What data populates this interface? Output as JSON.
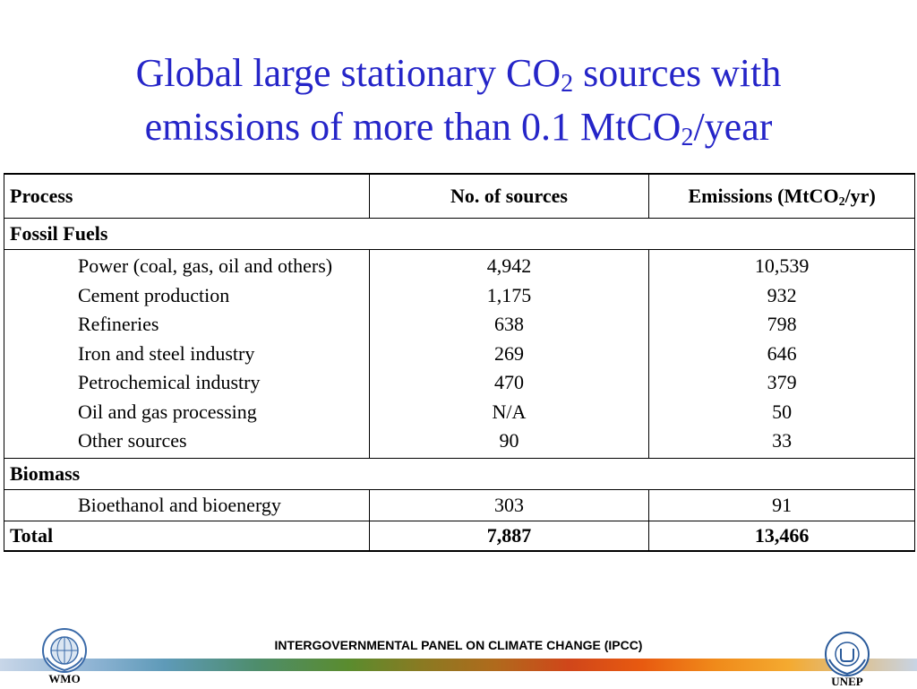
{
  "title": {
    "line1_before": "Global large stationary CO",
    "line1_sub": "2",
    "line1_after": " sources with",
    "line2_before": "emissions of more than 0.1 MtCO",
    "line2_sub": "2",
    "line2_after": "/year"
  },
  "table": {
    "headers": {
      "process": "Process",
      "sources": "No. of sources",
      "emissions_before": "Emissions (MtCO",
      "emissions_sub": "2",
      "emissions_after": "/yr)"
    },
    "fossil_fuels": {
      "label": "Fossil Fuels",
      "rows": [
        {
          "process": "Power (coal, gas, oil and others)",
          "sources": "4,942",
          "emissions": "10,539"
        },
        {
          "process": "Cement production",
          "sources": "1,175",
          "emissions": "932"
        },
        {
          "process": "Refineries",
          "sources": "638",
          "emissions": "798"
        },
        {
          "process": "Iron and steel industry",
          "sources": "269",
          "emissions": "646"
        },
        {
          "process": "Petrochemical industry",
          "sources": "470",
          "emissions": "379"
        },
        {
          "process": "Oil and gas processing",
          "sources": "N/A",
          "emissions": "50"
        },
        {
          "process": "Other sources",
          "sources": "90",
          "emissions": "33"
        }
      ]
    },
    "biomass": {
      "label": "Biomass",
      "rows": [
        {
          "process": "Bioethanol and bioenergy",
          "sources": "303",
          "emissions": "91"
        }
      ]
    },
    "total": {
      "label": "Total",
      "sources": "7,887",
      "emissions": "13,466"
    }
  },
  "footer": {
    "text": "INTERGOVERNMENTAL PANEL ON CLIMATE CHANGE (IPCC)",
    "left_logo_label": "WMO",
    "right_logo_label": "UNEP"
  },
  "colors": {
    "title": "#2525c8"
  }
}
